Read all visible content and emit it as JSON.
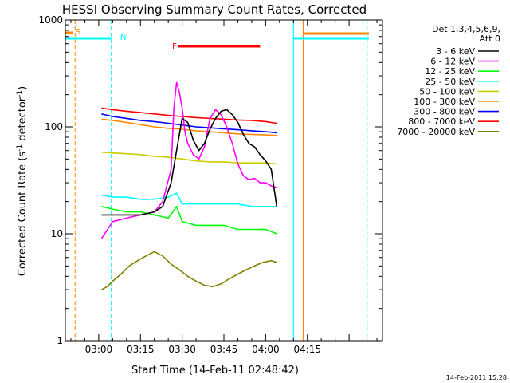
{
  "chart_data": {
    "type": "line",
    "title": "HESSI Observing Summary Count Rates, Corrected",
    "xlabel": "Start Time (14-Feb-11 02:48:42)",
    "ylabel_main": "Corrected Count Rate (s",
    "ylabel_sup1": "-1",
    "ylabel_mid": " detector",
    "ylabel_sup2": "-1",
    "ylabel_end": ")",
    "xlim_min": [
      168,
      282
    ],
    "ylog": true,
    "ylim": [
      1,
      1000
    ],
    "x_ticks": [
      {
        "min": 180,
        "label": "03:00"
      },
      {
        "min": 195,
        "label": "03:15"
      },
      {
        "min": 210,
        "label": "03:30"
      },
      {
        "min": 225,
        "label": "03:45"
      },
      {
        "min": 240,
        "label": "04:00"
      },
      {
        "min": 255,
        "label": "04:15"
      }
    ],
    "y_ticks": [
      {
        "v": 1,
        "label": "1"
      },
      {
        "v": 10,
        "label": "10"
      },
      {
        "v": 100,
        "label": "100"
      },
      {
        "v": 1000,
        "label": "1000"
      }
    ],
    "legend": {
      "header1": "Det 1,3,4,5,6,9,",
      "header2": "Att 0",
      "placement": "right"
    },
    "series": [
      {
        "name": "3 - 6 keV",
        "color": "#000000",
        "x": [
          181,
          185,
          190,
          195,
          200,
          203,
          206,
          208,
          210,
          212,
          214,
          216,
          218,
          220,
          222,
          224,
          226,
          228,
          230,
          232,
          234,
          236,
          238,
          240,
          242,
          244
        ],
        "values": [
          15,
          15,
          15,
          15,
          16,
          18,
          30,
          60,
          120,
          110,
          75,
          60,
          70,
          95,
          120,
          140,
          145,
          130,
          110,
          85,
          70,
          65,
          55,
          48,
          40,
          18
        ]
      },
      {
        "name": "6 - 12 keV",
        "color": "#ff00ff",
        "x": [
          181,
          185,
          190,
          195,
          200,
          203,
          206,
          207,
          208,
          209,
          210,
          211,
          212,
          214,
          216,
          218,
          220,
          222,
          224,
          226,
          228,
          230,
          232,
          234,
          236,
          238,
          240,
          242,
          244
        ],
        "values": [
          9,
          13,
          14,
          15,
          16,
          20,
          40,
          150,
          260,
          210,
          150,
          90,
          70,
          55,
          50,
          65,
          120,
          145,
          130,
          100,
          70,
          45,
          35,
          32,
          33,
          30,
          30,
          28,
          27
        ]
      },
      {
        "name": "12 - 25 keV",
        "color": "#00ff00",
        "x": [
          181,
          185,
          190,
          195,
          200,
          205,
          208,
          210,
          215,
          220,
          225,
          230,
          235,
          240,
          244
        ],
        "values": [
          18,
          17,
          16,
          16,
          15,
          14,
          18,
          13,
          12,
          12,
          12,
          11,
          11,
          11,
          10
        ]
      },
      {
        "name": "25 - 50 keV",
        "color": "#00ffff",
        "x": [
          181,
          185,
          190,
          195,
          200,
          205,
          208,
          210,
          215,
          220,
          225,
          230,
          235,
          240,
          244
        ],
        "values": [
          23,
          22,
          22,
          21,
          21,
          22,
          24,
          19,
          19,
          19,
          19,
          19,
          18,
          18,
          18
        ]
      },
      {
        "name": "50 - 100 keV",
        "color": "#cccc00",
        "x": [
          181,
          185,
          190,
          195,
          200,
          205,
          210,
          215,
          220,
          225,
          230,
          235,
          240,
          244
        ],
        "values": [
          58,
          57,
          56,
          55,
          53,
          52,
          50,
          48,
          47,
          47,
          46,
          46,
          46,
          45
        ]
      },
      {
        "name": "100 - 300 keV",
        "color": "#ff8800",
        "x": [
          181,
          185,
          190,
          195,
          200,
          205,
          210,
          215,
          220,
          225,
          230,
          235,
          240,
          244
        ],
        "values": [
          118,
          115,
          110,
          105,
          100,
          97,
          95,
          92,
          90,
          88,
          86,
          85,
          84,
          83
        ]
      },
      {
        "name": "300 - 800 keV",
        "color": "#0000ff",
        "x": [
          181,
          185,
          190,
          195,
          200,
          205,
          210,
          215,
          220,
          225,
          230,
          235,
          240,
          244
        ],
        "values": [
          132,
          125,
          120,
          115,
          112,
          108,
          104,
          100,
          98,
          96,
          94,
          92,
          90,
          88
        ]
      },
      {
        "name": "800 - 7000 keV",
        "color": "#ff0000",
        "x": [
          181,
          185,
          190,
          195,
          200,
          205,
          210,
          215,
          220,
          225,
          230,
          235,
          240,
          244
        ],
        "values": [
          150,
          145,
          140,
          136,
          132,
          128,
          125,
          122,
          120,
          118,
          116,
          115,
          112,
          108
        ]
      },
      {
        "name": "7000 - 20000 keV",
        "color": "#808000",
        "x": [
          181,
          183,
          185,
          188,
          191,
          194,
          197,
          200,
          203,
          206,
          209,
          212,
          215,
          218,
          221,
          224,
          227,
          230,
          233,
          236,
          239,
          242,
          244
        ],
        "values": [
          3,
          3.2,
          3.6,
          4.2,
          5.0,
          5.6,
          6.2,
          6.8,
          6.2,
          5.2,
          4.6,
          4.0,
          3.6,
          3.3,
          3.2,
          3.4,
          3.8,
          4.2,
          4.6,
          5.0,
          5.4,
          5.6,
          5.4
        ]
      }
    ],
    "flags": {
      "S_label": "S",
      "N_label": "N",
      "F_label": "F",
      "S_color": "#ff8800",
      "N_color": "#00ffff",
      "F_color": "#ff0000"
    },
    "timestamp": "14-Feb-2011 15:28"
  }
}
